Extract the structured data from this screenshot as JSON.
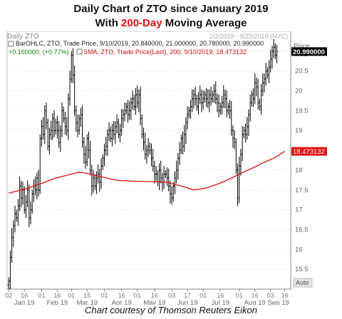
{
  "header": {
    "title_line1": "Daily Chart of ZTO since January 2019",
    "title_line2_pre": "With ",
    "title_line2_hl": "200-Day",
    "title_line2_post": " Moving Average"
  },
  "chart_header": {
    "symbol_label": "Daily ZTO",
    "date_range": "1/2/2019 - 9/23/2019 (NYC)",
    "price_axis_title": "Price",
    "currency": "USD",
    "ohlc_legend_line": "BarOHLC, ZTO, Trade Price, 9/10/2019, 20.840000, 21.000000, 20.780000, 20.990000",
    "change_text": "+0.160000, (+0.77%)",
    "sma_legend_line": "SMA, ZTO, Trade Price(Last), 200, 9/10/2019, 18.473132",
    "auto_label": "Auto"
  },
  "price_labels": {
    "last": "20.990000",
    "sma": "18.473132"
  },
  "colors": {
    "bars": "#000000",
    "sma": "#e01010",
    "highlight": "#e01010",
    "sma_box": "#e01010",
    "last_box": "#000000"
  },
  "footer": {
    "caption": "Chart courtesy of Thomson Reuters Eikon"
  },
  "chart_data": {
    "type": "ohlc",
    "title": "Daily Chart of ZTO since January 2019",
    "subtitle": "With 200-Day Moving Average",
    "ylabel": "Price USD",
    "ylim": [
      15.0,
      21.5
    ],
    "y_ticks": [
      "15.5",
      "16",
      "16.5",
      "17",
      "17.5",
      "18",
      "18.5",
      "19",
      "19.5",
      "20",
      "20.5",
      "21"
    ],
    "x_day_ticks": [
      {
        "label": "02",
        "day": 0
      },
      {
        "label": "16",
        "day": 10
      },
      {
        "label": "01",
        "day": 21
      },
      {
        "label": "16",
        "day": 31
      },
      {
        "label": "01",
        "day": 40
      },
      {
        "label": "15",
        "day": 50
      },
      {
        "label": "01",
        "day": 61
      },
      {
        "label": "16",
        "day": 72
      },
      {
        "label": "01",
        "day": 82
      },
      {
        "label": "16",
        "day": 93
      },
      {
        "label": "03",
        "day": 104
      },
      {
        "label": "17",
        "day": 114
      },
      {
        "label": "01",
        "day": 124
      },
      {
        "label": "16",
        "day": 135
      },
      {
        "label": "01",
        "day": 147
      },
      {
        "label": "16",
        "day": 157
      },
      {
        "label": "03",
        "day": 167
      },
      {
        "label": "16",
        "day": 176
      }
    ],
    "x_month_ticks": [
      {
        "label": "Jan 19",
        "day": 10
      },
      {
        "label": "Feb 19",
        "day": 31
      },
      {
        "label": "Mar 19",
        "day": 50
      },
      {
        "label": "Apr 19",
        "day": 72
      },
      {
        "label": "May 19",
        "day": 93
      },
      {
        "label": "Jun 19",
        "day": 114
      },
      {
        "label": "Jul 19",
        "day": 135
      },
      {
        "label": "Aug 19",
        "day": 157
      },
      {
        "label": "Sep 19",
        "day": 172
      }
    ],
    "x_range": [
      -1,
      178
    ],
    "closes": [
      15.2,
      15.8,
      16.3,
      16.6,
      16.9,
      16.8,
      17.1,
      17.6,
      17.3,
      17.5,
      17.0,
      17.2,
      17.5,
      16.8,
      17.0,
      17.4,
      17.6,
      17.5,
      17.8,
      17.5,
      18.8,
      19.1,
      18.9,
      19.5,
      19.2,
      18.6,
      18.9,
      19.0,
      19.3,
      19.0,
      19.2,
      19.0,
      18.7,
      19.0,
      19.5,
      19.3,
      19.1,
      19.0,
      19.8,
      20.3,
      20.9,
      20.4,
      19.5,
      19.2,
      19.0,
      19.3,
      19.4,
      18.7,
      18.4,
      18.2,
      18.8,
      18.5,
      18.0,
      17.6,
      17.8,
      17.6,
      17.8,
      17.9,
      17.7,
      18.1,
      18.3,
      18.5,
      18.6,
      18.9,
      19.0,
      18.8,
      19.0,
      18.9,
      19.1,
      19.2,
      18.9,
      19.0,
      19.3,
      19.4,
      19.5,
      19.6,
      19.4,
      19.5,
      19.7,
      19.8,
      19.6,
      19.9,
      19.7,
      19.9,
      19.3,
      18.9,
      18.7,
      18.4,
      18.5,
      18.6,
      18.5,
      18.3,
      18.1,
      17.9,
      17.9,
      17.7,
      18.0,
      17.8,
      17.7,
      17.9,
      17.9,
      17.8,
      17.6,
      17.4,
      17.3,
      17.6,
      17.8,
      18.0,
      18.3,
      18.5,
      18.8,
      18.6,
      18.9,
      19.2,
      19.4,
      19.5,
      19.6,
      19.8,
      19.9,
      19.8,
      19.6,
      19.8,
      19.9,
      19.7,
      19.8,
      19.9,
      19.8,
      19.7,
      19.9,
      19.8,
      19.9,
      20.0,
      19.8,
      19.7,
      19.5,
      19.6,
      19.7,
      19.9,
      19.8,
      19.5,
      19.6,
      19.5,
      19.0,
      18.8,
      18.7,
      18.0,
      17.3,
      18.1,
      18.4,
      18.9,
      19.0,
      18.9,
      19.1,
      19.4,
      19.7,
      19.9,
      19.8,
      20.2,
      20.1,
      19.7,
      19.6,
      20.0,
      20.2,
      20.3,
      20.5,
      20.4,
      20.6,
      20.8,
      21.0,
      21.1,
      20.9,
      20.99
    ],
    "sma_200": [
      [
        0,
        17.42
      ],
      [
        10,
        17.52
      ],
      [
        20,
        17.65
      ],
      [
        30,
        17.8
      ],
      [
        40,
        17.9
      ],
      [
        45,
        17.95
      ],
      [
        50,
        17.92
      ],
      [
        60,
        17.82
      ],
      [
        70,
        17.74
      ],
      [
        80,
        17.72
      ],
      [
        90,
        17.71
      ],
      [
        100,
        17.7
      ],
      [
        110,
        17.6
      ],
      [
        118,
        17.5
      ],
      [
        126,
        17.55
      ],
      [
        134,
        17.66
      ],
      [
        142,
        17.8
      ],
      [
        150,
        17.96
      ],
      [
        157,
        18.08
      ],
      [
        163,
        18.2
      ],
      [
        170,
        18.32
      ],
      [
        176,
        18.473
      ]
    ]
  }
}
